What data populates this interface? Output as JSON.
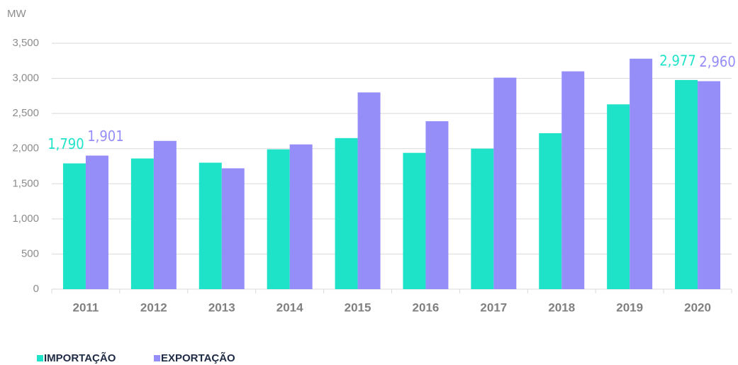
{
  "chart_data": {
    "type": "bar",
    "y_label": "MW",
    "categories": [
      "2011",
      "2012",
      "2013",
      "2014",
      "2015",
      "2016",
      "2017",
      "2018",
      "2019",
      "2020"
    ],
    "series": [
      {
        "name": "IMPORTAÇÃO",
        "color": "#1ee3c9",
        "values": [
          1790,
          1860,
          1800,
          1990,
          2150,
          1940,
          2000,
          2220,
          2630,
          2977
        ],
        "value_labels": [
          "1,790",
          null,
          null,
          null,
          null,
          null,
          null,
          null,
          null,
          "2,977"
        ]
      },
      {
        "name": "EXPORTAÇÃO",
        "color": "#958df8",
        "values": [
          1901,
          2110,
          1720,
          2060,
          2800,
          2390,
          3010,
          3100,
          3280,
          2960
        ],
        "value_labels": [
          "1,901",
          null,
          null,
          null,
          null,
          null,
          null,
          null,
          null,
          "2,960"
        ]
      }
    ],
    "ylim": [
      0,
      3500
    ],
    "yticks": [
      0,
      500,
      {
        "value": 1000,
        "label": "1,000"
      },
      {
        "value": 1500,
        "label": "1,500"
      },
      {
        "value": 2000,
        "label": "2,000"
      },
      {
        "value": 2500,
        "label": "2,500"
      },
      {
        "value": 3000,
        "label": "3,000"
      },
      {
        "value": 3500,
        "label": "3,500"
      }
    ],
    "grid": true
  }
}
